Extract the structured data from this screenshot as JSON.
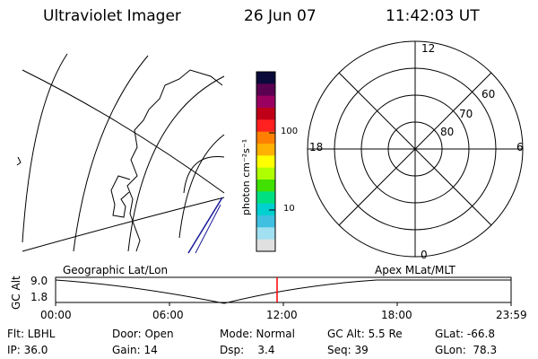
{
  "header": {
    "instrument": "Ultraviolet Imager",
    "date": "26 Jun 07",
    "time": "11:42:03 UT"
  },
  "colorbar": {
    "label": "photon cm⁻²s⁻¹",
    "tick_high": "100",
    "tick_low": "10",
    "colors": [
      "#0a0a3a",
      "#5a0050",
      "#9a0060",
      "#c00018",
      "#ff2020",
      "#ff8000",
      "#ffb000",
      "#ffff00",
      "#b0ff00",
      "#40e000",
      "#00e080",
      "#00d0d0",
      "#40c0e0",
      "#a0e0f0",
      "#e0e0e0"
    ]
  },
  "polar": {
    "lat_labels": [
      "80",
      "70",
      "60"
    ],
    "mlt_labels": {
      "top": "12",
      "right": "6",
      "bottom": "0",
      "left": "18"
    }
  },
  "timeline": {
    "left_label": "Geographic Lat/Lon",
    "right_label": "Apex MLat/MLT",
    "axis_title": "GC Alt",
    "y_high": "9.0",
    "y_low": "1.8",
    "x_ticks": [
      "00:00",
      "06:00",
      "12:00",
      "18:00",
      "23:59"
    ],
    "marker_color": "#ff0000"
  },
  "footer": {
    "row1": {
      "flt": "Flt: LBHL",
      "door": "Door: Open",
      "mode": "Mode: Normal",
      "gcalt": "GC Alt: 5.5 Re",
      "glat": "GLat: -66.8"
    },
    "row2": {
      "ip": "IP: 36.0",
      "gain": "Gain: 14",
      "dsp": "Dsp:    3.4",
      "seq": "Seq: 39",
      "glon": "GLon:  78.3"
    }
  }
}
